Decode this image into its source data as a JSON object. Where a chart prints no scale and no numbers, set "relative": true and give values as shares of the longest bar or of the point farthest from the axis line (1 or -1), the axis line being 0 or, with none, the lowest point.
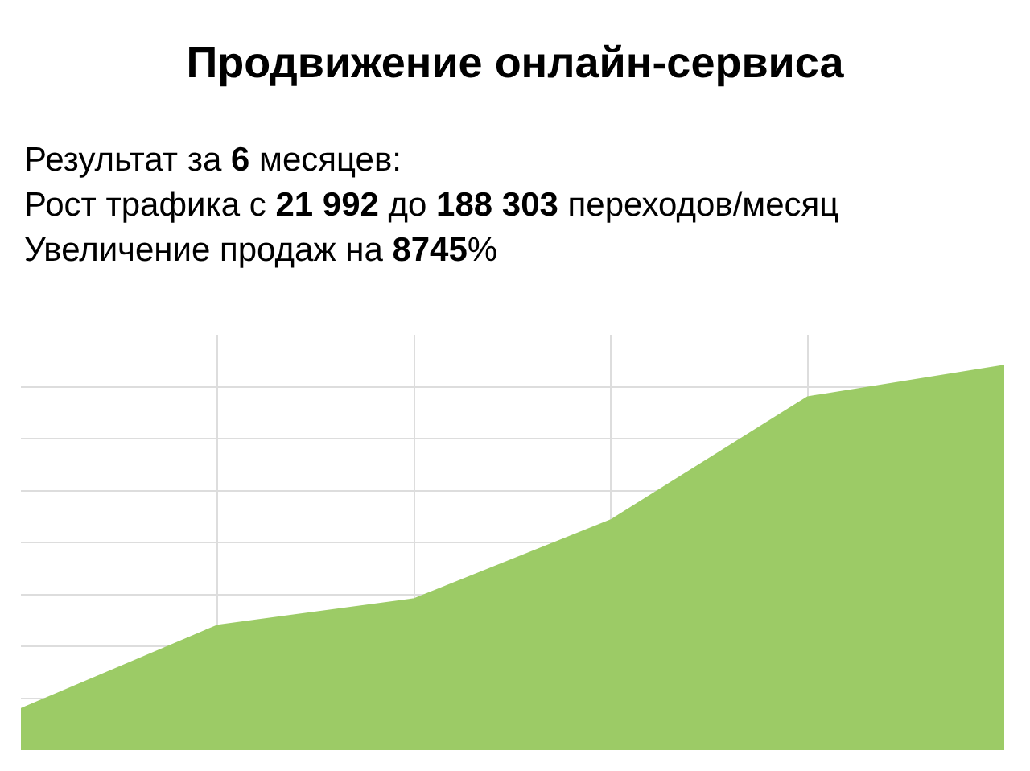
{
  "chart_data": {
    "type": "area",
    "title": "Продвижение онлайн-сервиса",
    "subtitle": "Результат за 6 месяцев:\nРост трафика с 21 992 до 188 303 переходов/месяц\nУвеличение продаж на 8745%",
    "relative": true,
    "categories": [
      null,
      null,
      null,
      null,
      null,
      null
    ],
    "series": [
      {
        "color": "#9ccb66",
        "values": [
          0.107,
          0.324,
          0.393,
          0.598,
          0.918,
          1
        ]
      }
    ],
    "grid": true,
    "legend": false
  }
}
